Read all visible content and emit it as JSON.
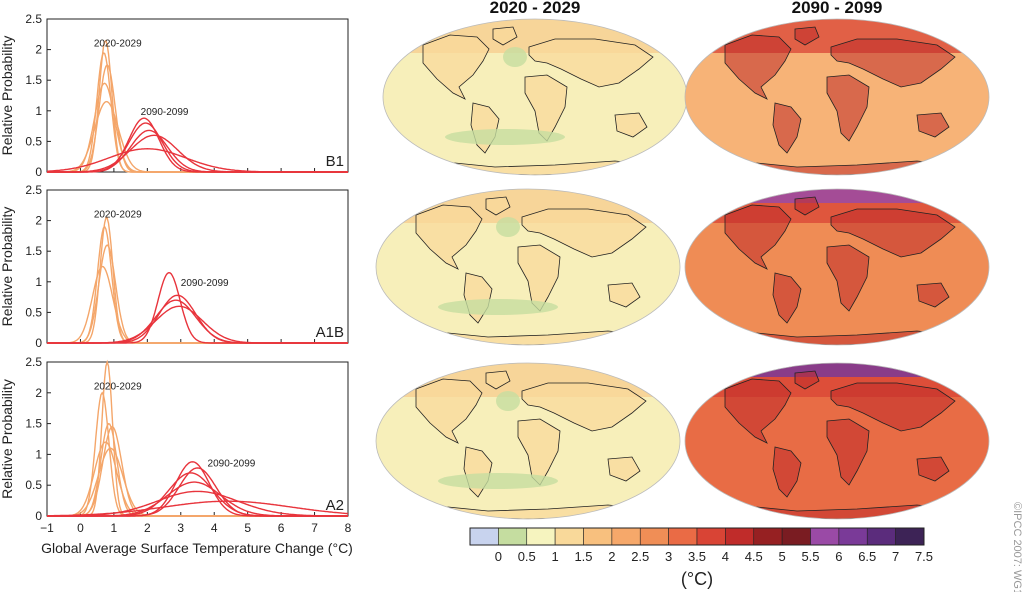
{
  "chart_data": [
    {
      "type": "line",
      "scenario": "B1",
      "ylabel": "Relative Probability",
      "xlim": [
        -1,
        8
      ],
      "ylim": [
        0,
        2.5
      ],
      "yticks": [
        "0",
        "0.5",
        "1",
        "1.5",
        "2",
        "2.5"
      ],
      "period_labels": [
        {
          "text": "2020-2029",
          "x": 0.4,
          "y": 2.05
        },
        {
          "text": "2090-2099",
          "x": 1.8,
          "y": 0.93
        }
      ],
      "series": [
        {
          "period": "2020-2029",
          "color": "#f4a66a",
          "curves": [
            [
              0.75,
              0.19,
              2.15
            ],
            [
              0.7,
              0.21,
              1.95
            ],
            [
              0.8,
              0.24,
              1.75
            ],
            [
              0.72,
              0.3,
              1.45
            ],
            [
              0.78,
              0.36,
              1.15
            ]
          ]
        },
        {
          "period": "2090-2099",
          "color": "#e8343c",
          "curves": [
            [
              1.9,
              0.45,
              0.88
            ],
            [
              1.95,
              0.5,
              0.8
            ],
            [
              2.05,
              0.55,
              0.68
            ],
            [
              2.2,
              0.7,
              0.6
            ],
            [
              2.0,
              1.15,
              0.38
            ]
          ]
        }
      ]
    },
    {
      "type": "line",
      "scenario": "A1B",
      "ylabel": "Relative Probability",
      "xlim": [
        -1,
        8
      ],
      "ylim": [
        0,
        2.5
      ],
      "yticks": [
        "0",
        "0.5",
        "1",
        "1.5",
        "2",
        "2.5"
      ],
      "period_labels": [
        {
          "text": "2020-2029",
          "x": 0.4,
          "y": 2.05
        },
        {
          "text": "2090-2099",
          "x": 3.0,
          "y": 0.93
        }
      ],
      "series": [
        {
          "period": "2020-2029",
          "color": "#f4a66a",
          "curves": [
            [
              0.78,
              0.19,
              2.05
            ],
            [
              0.72,
              0.21,
              1.9
            ],
            [
              0.8,
              0.25,
              1.6
            ],
            [
              0.66,
              0.3,
              1.25
            ]
          ]
        },
        {
          "period": "2090-2099",
          "color": "#e8343c",
          "curves": [
            [
              2.65,
              0.33,
              1.15
            ],
            [
              2.9,
              0.55,
              0.78
            ],
            [
              2.85,
              0.6,
              0.7
            ],
            [
              2.95,
              0.7,
              0.6
            ]
          ]
        }
      ]
    },
    {
      "type": "line",
      "scenario": "A2",
      "ylabel": "Relative Probability",
      "xlim": [
        -1,
        8
      ],
      "ylim": [
        0,
        2.5
      ],
      "yticks": [
        "0",
        "0.5",
        "1",
        "1.5",
        "2",
        "2.5"
      ],
      "xticks": [
        "−1",
        "0",
        "1",
        "2",
        "3",
        "4",
        "5",
        "6",
        "7",
        "8"
      ],
      "xlabel": "Global Average Surface Temperature Change (°C)",
      "period_labels": [
        {
          "text": "2020-2029",
          "x": 0.4,
          "y": 2.05
        },
        {
          "text": "2090-2099",
          "x": 3.8,
          "y": 0.8
        }
      ],
      "series": [
        {
          "period": "2020-2029",
          "color": "#f4a66a",
          "curves": [
            [
              0.8,
              0.16,
              2.5
            ],
            [
              0.65,
              0.2,
              2.0
            ],
            [
              0.85,
              0.24,
              1.5
            ],
            [
              0.95,
              0.28,
              1.45
            ],
            [
              0.75,
              0.33,
              1.2
            ],
            [
              0.9,
              0.36,
              1.1
            ]
          ]
        },
        {
          "period": "2090-2099",
          "color": "#e8343c",
          "curves": [
            [
              3.35,
              0.5,
              0.88
            ],
            [
              3.5,
              0.55,
              0.78
            ],
            [
              3.3,
              0.65,
              0.7
            ],
            [
              3.4,
              0.8,
              0.55
            ],
            [
              3.5,
              1.2,
              0.4
            ],
            [
              4.4,
              1.9,
              0.24
            ]
          ]
        }
      ]
    },
    {
      "type": "heatmap",
      "column_titles": [
        "2020 - 2029",
        "2090 - 2099"
      ],
      "rows": [
        "B1",
        "A1B",
        "A2"
      ],
      "colorbar": {
        "unit": "(°C)",
        "ticks": [
          "0",
          "0.5",
          "1",
          "1.5",
          "2",
          "2.5",
          "3",
          "3.5",
          "4",
          "4.5",
          "5",
          "5.5",
          "6",
          "6.5",
          "7",
          "7.5"
        ],
        "colors": [
          "#c8d3ee",
          "#c5dda0",
          "#f6f4bf",
          "#f9d99a",
          "#f8c07e",
          "#f6a86a",
          "#f08e56",
          "#ea6b45",
          "#d94435",
          "#c02c2a",
          "#962022",
          "#7a1c22",
          "#9a4aa6",
          "#7a3a98",
          "#5b2c7c",
          "#3d2356"
        ]
      },
      "maps": [
        {
          "row": "B1",
          "period": "2020-2029",
          "base": "#f7efba"
        },
        {
          "row": "B1",
          "period": "2090-2099",
          "base": "#f7b377"
        },
        {
          "row": "A1B",
          "period": "2020-2029",
          "base": "#f7efba"
        },
        {
          "row": "A1B",
          "period": "2090-2099",
          "base": "#ef8c55"
        },
        {
          "row": "A2",
          "period": "2020-2029",
          "base": "#f7efba"
        },
        {
          "row": "A2",
          "period": "2090-2099",
          "base": "#e86c45"
        }
      ]
    }
  ],
  "credit": "©IPCC 2007: WG1-AR4"
}
